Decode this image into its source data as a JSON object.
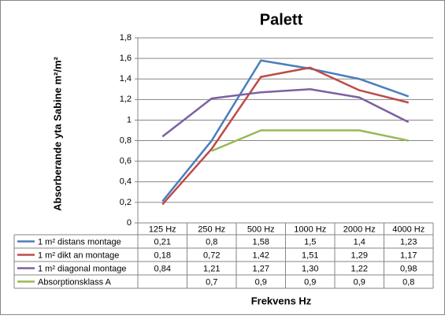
{
  "chart_data": {
    "type": "line",
    "title": "Palett",
    "y_label": "Absorberande yta Sabine m²/m²",
    "x_label": "Frekvens Hz",
    "categories": [
      "125 Hz",
      "250 Hz",
      "500 Hz",
      "1000 Hz",
      "2000 Hz",
      "4000 Hz"
    ],
    "ylim": [
      0,
      1.8
    ],
    "yticks": [
      0,
      {
        "value": 0.2,
        "label": "0,2"
      },
      {
        "value": 0.4,
        "label": "0,4"
      },
      {
        "value": 0.6,
        "label": "0,6"
      },
      {
        "value": 0.8,
        "label": "0,8"
      },
      1,
      {
        "value": 1.2,
        "label": "1,2"
      },
      {
        "value": 1.4,
        "label": "1,4"
      },
      {
        "value": 1.6,
        "label": "1,6"
      },
      {
        "value": 1.8,
        "label": "1,8"
      }
    ],
    "grid": true,
    "series": [
      {
        "name": "1 m² distans montage",
        "color": "#4a7ebb",
        "values": [
          0.21,
          0.8,
          1.58,
          1.5,
          1.4,
          1.23
        ],
        "value_labels": [
          "0,21",
          "0,8",
          "1,58",
          "1,5",
          "1,4",
          "1,23"
        ]
      },
      {
        "name": "1 m² dikt an montage",
        "color": "#be4b48",
        "values": [
          0.18,
          0.72,
          1.42,
          1.51,
          1.29,
          1.17
        ],
        "value_labels": [
          "0,18",
          "0,72",
          "1,42",
          "1,51",
          "1,29",
          "1,17"
        ]
      },
      {
        "name": "1 m² diagonal montage",
        "color": "#7d60a0",
        "values": [
          0.84,
          1.21,
          1.27,
          1.3,
          1.22,
          0.98
        ],
        "value_labels": [
          "0,84",
          "1,21",
          "1,27",
          "1,30",
          "1,22",
          "0,98"
        ]
      },
      {
        "name": "Absorptionsklass A",
        "color": "#98b954",
        "values": [
          null,
          0.7,
          0.9,
          0.9,
          0.9,
          0.8
        ],
        "value_labels": [
          null,
          "0,7",
          "0,9",
          "0,9",
          "0,9",
          "0,8"
        ]
      }
    ]
  }
}
